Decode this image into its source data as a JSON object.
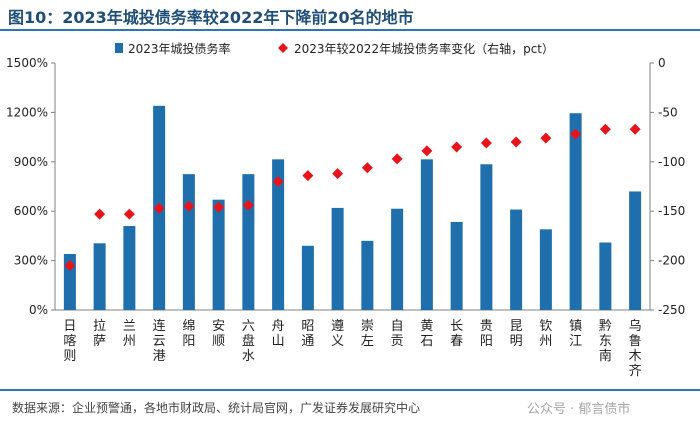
{
  "title": "图10：2023年城投债务率较2022年下降前20名的地市",
  "source": "数据来源：企业预警通，各地市财政局、统计局官网，广发证券发展研究中心",
  "watermark": "公众号 · 郁言债市",
  "colors": {
    "bar": "#1f6fad",
    "diamond": "#e8141c",
    "rule": "#2e75b6",
    "title": "#1f4e79"
  },
  "chart_data": {
    "type": "bar",
    "categories": [
      "日喀则",
      "拉萨",
      "兰州",
      "连云港",
      "绵阳",
      "安顺",
      "六盘水",
      "舟山",
      "昭通",
      "遵义",
      "崇左",
      "自贡",
      "黄石",
      "长春",
      "贵阳",
      "昆明",
      "钦州",
      "镇江",
      "黔东南",
      "乌鲁木齐"
    ],
    "series": [
      {
        "name": "2023年城投债务率",
        "type": "bar",
        "axis": "left",
        "unit": "%",
        "values": [
          340,
          405,
          510,
          1240,
          825,
          670,
          825,
          915,
          390,
          620,
          420,
          615,
          915,
          535,
          885,
          610,
          490,
          1195,
          410,
          720
        ]
      },
      {
        "name": "2023年较2022年城投债务率变化（右轴，pct）",
        "type": "scatter",
        "marker": "diamond",
        "axis": "right",
        "unit": "pct",
        "values": [
          -205,
          -153,
          -153,
          -147,
          -145,
          -146,
          -144,
          -120,
          -114,
          -112,
          -106,
          -97,
          -89,
          -85,
          -81,
          -80,
          -76,
          -72,
          -67,
          -67
        ]
      }
    ],
    "y_left": {
      "min": 0,
      "max": 1500,
      "ticks": [
        0,
        300,
        600,
        900,
        1200,
        1500
      ],
      "tick_labels": [
        "0%",
        "300%",
        "600%",
        "900%",
        "1200%",
        "1500%"
      ]
    },
    "y_right": {
      "min": -250,
      "max": 0,
      "ticks": [
        0,
        -50,
        -100,
        -150,
        -200,
        -250
      ],
      "tick_labels": [
        "0",
        "-50",
        "-100",
        "-150",
        "-200",
        "-250"
      ]
    },
    "legend": {
      "position": "top",
      "items": [
        "2023年城投债务率",
        "2023年较2022年城投债务率变化（右轴，pct）"
      ]
    }
  }
}
